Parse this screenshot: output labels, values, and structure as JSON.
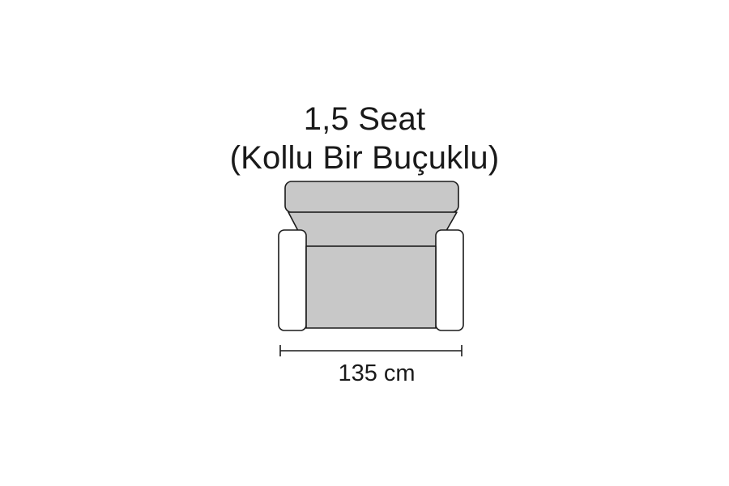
{
  "title": {
    "line1": "1,5 Seat",
    "line2": "(Kollu Bir Buçuklu)"
  },
  "dimension": {
    "width_label": "135 cm"
  },
  "colors": {
    "upholstery": "#c8c8c8",
    "arm": "#ffffff",
    "outline": "#1a1a1a"
  }
}
